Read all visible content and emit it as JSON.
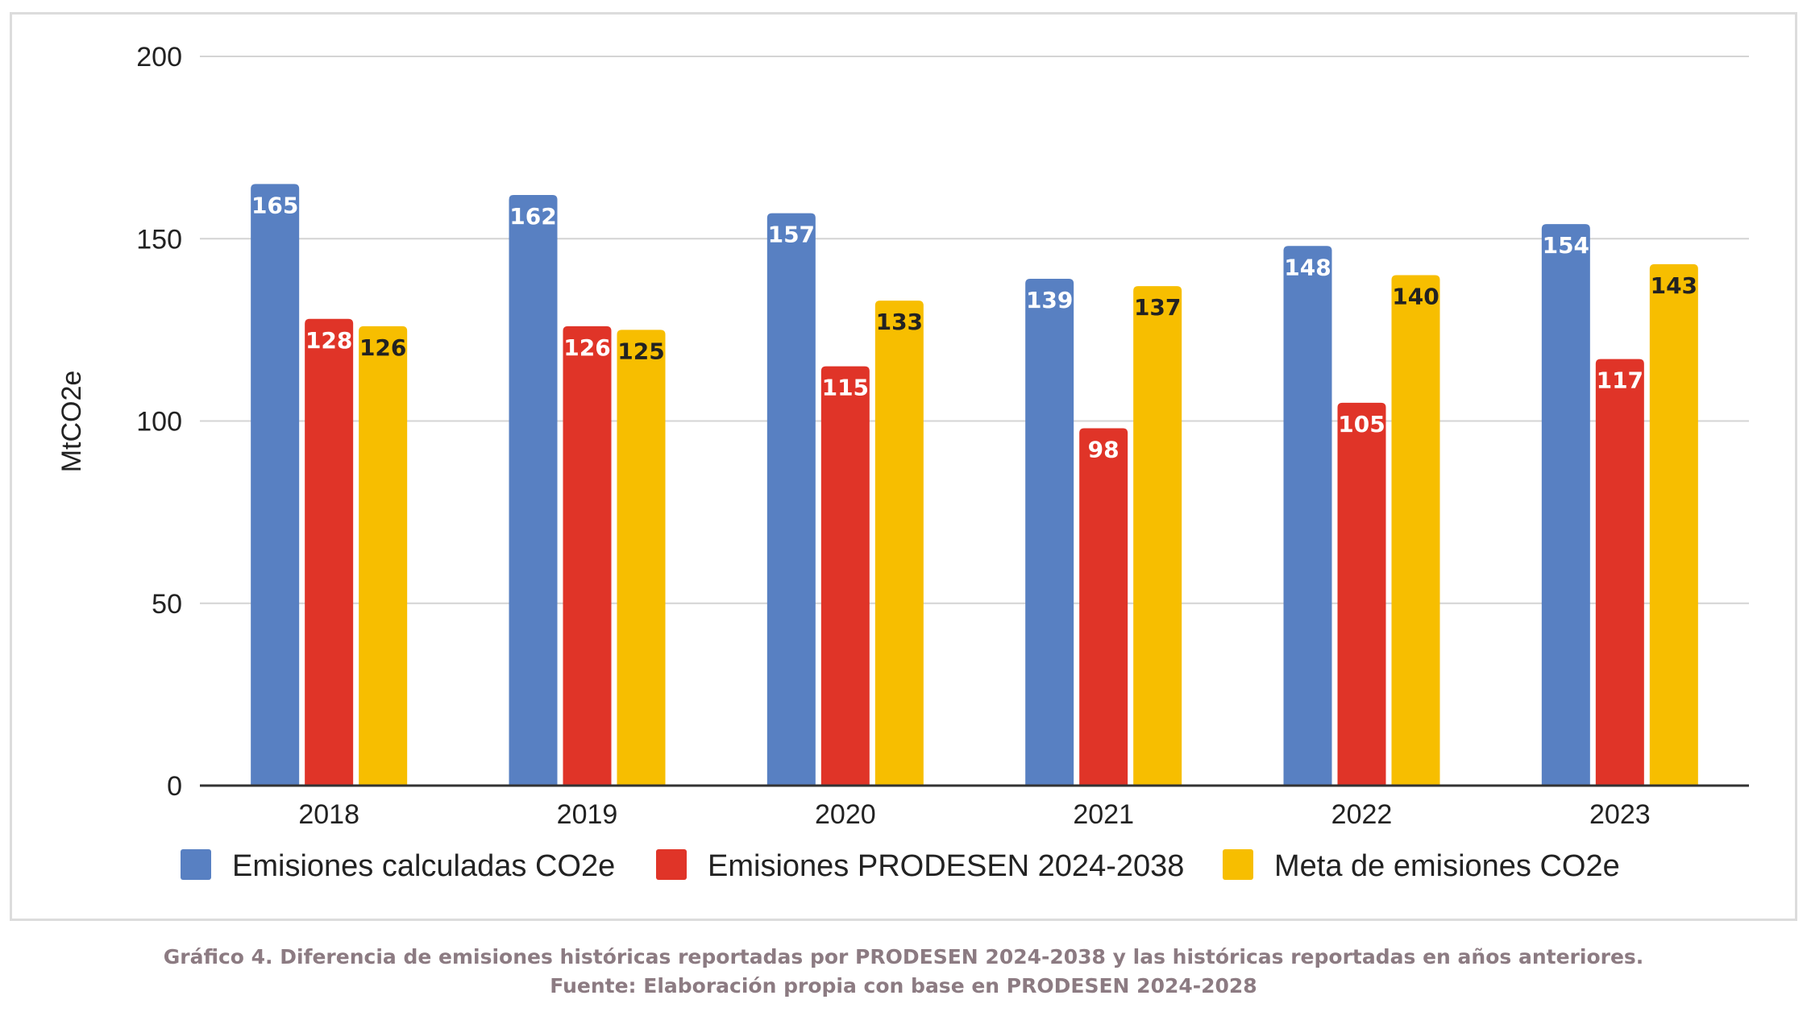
{
  "chart_data": {
    "type": "bar",
    "categories": [
      "2018",
      "2019",
      "2020",
      "2021",
      "2022",
      "2023"
    ],
    "series": [
      {
        "name": "Emisiones calculadas CO2e",
        "color": "#5880c2",
        "label_color": "#ffffff",
        "values": [
          165,
          162,
          157,
          139,
          148,
          154
        ]
      },
      {
        "name": "Emisiones PRODESEN 2024-2038",
        "color": "#e03428",
        "label_color": "#ffffff",
        "values": [
          128,
          126,
          115,
          98,
          105,
          117
        ]
      },
      {
        "name": "Meta de emisiones CO2e",
        "color": "#f7be00",
        "label_color": "#222222",
        "values": [
          126,
          125,
          133,
          137,
          140,
          143
        ]
      }
    ],
    "title": "",
    "xlabel": "",
    "ylabel": "MtCO2e",
    "ylim": [
      0,
      200
    ],
    "yticks": [
      0,
      50,
      100,
      150,
      200
    ],
    "grid": true,
    "legend_position": "bottom"
  },
  "caption": {
    "line1": "Gráfico 4. Diferencia de emisiones históricas reportadas por PRODESEN 2024-2038 y las históricas reportadas en años anteriores.",
    "line2": "Fuente: Elaboración propia con base en PRODESEN 2024-2028"
  }
}
